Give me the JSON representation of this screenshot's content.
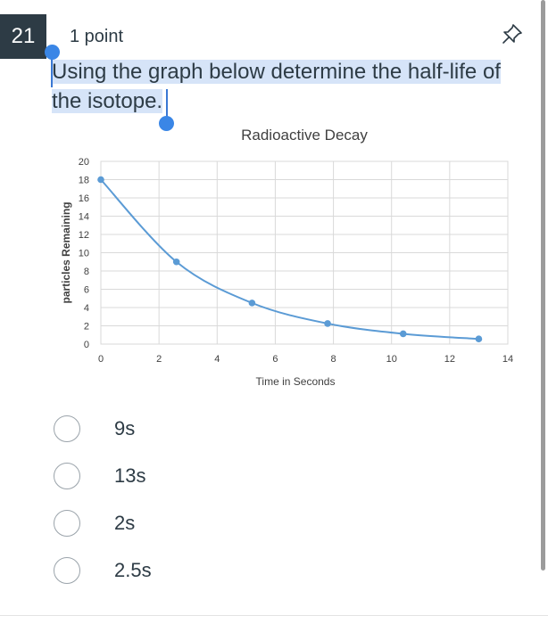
{
  "question": {
    "number": "21",
    "points": "1 point",
    "text": "Using the graph below determine the half-life of the isotope."
  },
  "icons": {
    "pin": "pin-icon"
  },
  "colors": {
    "question_number_bg": "#2d3b45",
    "selection_highlight": "#d6e4f8",
    "selection_handle": "#3a86e6",
    "series_line": "#5b9bd5"
  },
  "chart_data": {
    "type": "line",
    "title": "Radioactive Decay",
    "xlabel": "Time in Seconds",
    "ylabel": "particles Remaining",
    "xlim": [
      0,
      14
    ],
    "ylim": [
      0,
      20
    ],
    "xticks": [
      0,
      2,
      4,
      6,
      8,
      10,
      12,
      14
    ],
    "yticks": [
      0,
      2,
      4,
      6,
      8,
      10,
      12,
      14,
      16,
      18,
      20
    ],
    "grid": true,
    "smooth": true,
    "series": [
      {
        "x": [
          0,
          2.6,
          5.2,
          7.8,
          10.4,
          13
        ],
        "y": [
          18,
          9,
          4.5,
          2.25,
          1.125,
          0.5625
        ]
      }
    ]
  },
  "options": [
    {
      "label": "9s"
    },
    {
      "label": "13s"
    },
    {
      "label": "2s"
    },
    {
      "label": "2.5s"
    }
  ]
}
